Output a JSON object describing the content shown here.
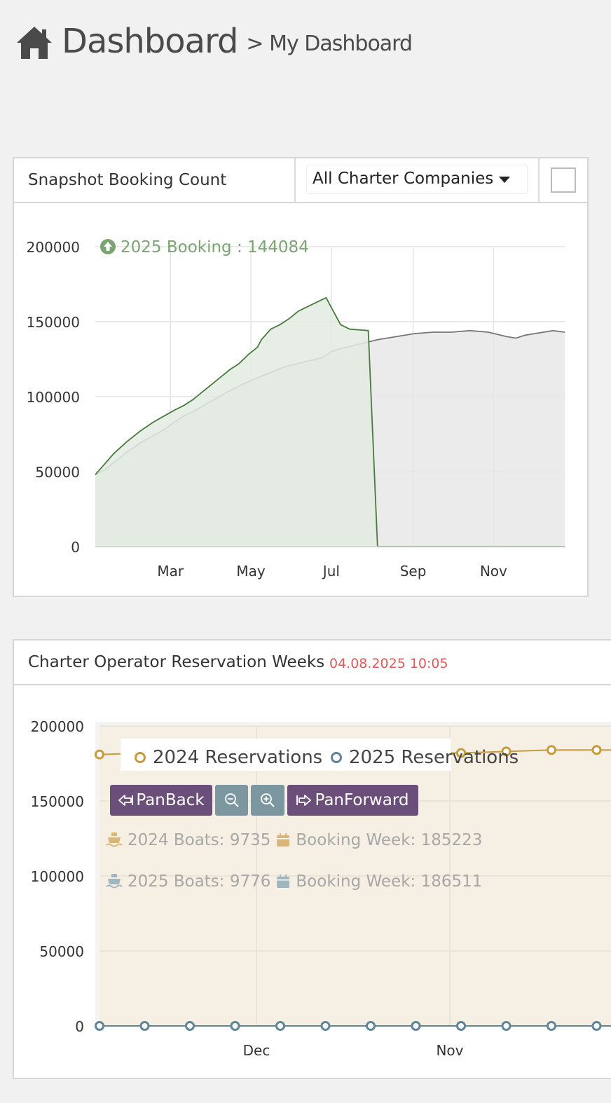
{
  "header": {
    "title": "Dashboard",
    "subtitle": "> My Dashboard",
    "home_icon": "home-icon"
  },
  "panel1": {
    "title": "Snapshot Booking Count",
    "select_value": "All Charter Companies",
    "legend_label": "2025 Booking : 144084",
    "colors": {
      "current": "#4a7a3f",
      "current_fill": "#e2ebe0",
      "previous": "#777777",
      "previous_fill": "#e8e8e8"
    }
  },
  "panel2": {
    "title": "Charter Operator Reservation Weeks",
    "timestamp": "04.08.2025 10:05",
    "legend": [
      "2024 Reservations",
      "2025 Reservations"
    ],
    "buttons": {
      "pan_back": "PanBack",
      "pan_forward": "PanForward",
      "zoom_out_icon": "zoom-out-icon",
      "zoom_in_icon": "zoom-in-icon"
    },
    "stats": {
      "boats_2024": "2024 Boats: 9735",
      "week_2024": "Booking Week: 185223",
      "boats_2025": "2025 Boats: 9776",
      "week_2025": "Booking Week: 186511"
    },
    "colors": {
      "s2024": "#c89a3e",
      "s2025": "#5f8596",
      "fill2024": "#f6efe3"
    }
  },
  "chart_data": [
    {
      "type": "area",
      "title": "Snapshot Booking Count",
      "ylim": [
        0,
        200000
      ],
      "yticks": [
        0,
        50000,
        100000,
        150000,
        200000
      ],
      "xticks": [
        "Mar",
        "May",
        "Jul",
        "Sep",
        "Nov"
      ],
      "xtick_doy": [
        60,
        121,
        182,
        244,
        305
      ],
      "xlim_doy": [
        3,
        359
      ],
      "grid": true,
      "legend": "top-left",
      "series": [
        {
          "name": "2025 Booking",
          "x_doy": [
            3,
            10,
            17,
            27,
            37,
            47,
            57,
            63,
            70,
            77,
            84,
            91,
            98,
            105,
            112,
            119,
            126,
            129,
            136,
            143,
            150,
            157,
            164,
            171,
            178,
            189,
            196,
            210,
            217,
            359
          ],
          "values": [
            48000,
            55000,
            62000,
            70000,
            77000,
            83000,
            88000,
            91000,
            94000,
            98000,
            103000,
            108000,
            113000,
            118000,
            122000,
            128000,
            133000,
            138000,
            145000,
            148000,
            152000,
            157000,
            160000,
            163000,
            166000,
            148000,
            145000,
            144084,
            0,
            0
          ]
        },
        {
          "name": "",
          "x_doy": [
            3,
            10,
            17,
            27,
            37,
            47,
            57,
            63,
            70,
            77,
            91,
            105,
            119,
            133,
            147,
            161,
            175,
            182,
            189,
            203,
            217,
            231,
            245,
            259,
            273,
            287,
            301,
            315,
            322,
            329,
            336,
            343,
            350,
            359
          ],
          "values": [
            48000,
            51000,
            56000,
            63000,
            69000,
            74000,
            79000,
            83000,
            87000,
            90000,
            97000,
            104000,
            110000,
            115000,
            120000,
            123000,
            126000,
            130000,
            132000,
            135000,
            138000,
            140000,
            142000,
            143000,
            143000,
            144000,
            143000,
            140000,
            139000,
            141000,
            142000,
            143000,
            144000,
            143000
          ]
        }
      ]
    },
    {
      "type": "line",
      "title": "Charter Operator Reservation Weeks",
      "ylim": [
        0,
        200000
      ],
      "yticks": [
        0,
        50000,
        100000,
        150000,
        200000
      ],
      "xticks": [
        "Dec",
        "Nov"
      ],
      "grid": true,
      "legend": "top",
      "series": [
        {
          "name": "2024 Reservations",
          "values": [
            181000,
            182000,
            183000,
            184000,
            183000,
            182000,
            182000,
            182000,
            182000,
            183000,
            184000,
            184000
          ]
        },
        {
          "name": "2025 Reservations",
          "values": [
            0,
            0,
            0,
            0,
            0,
            0,
            0,
            0,
            0,
            0,
            0,
            0
          ]
        }
      ]
    }
  ]
}
